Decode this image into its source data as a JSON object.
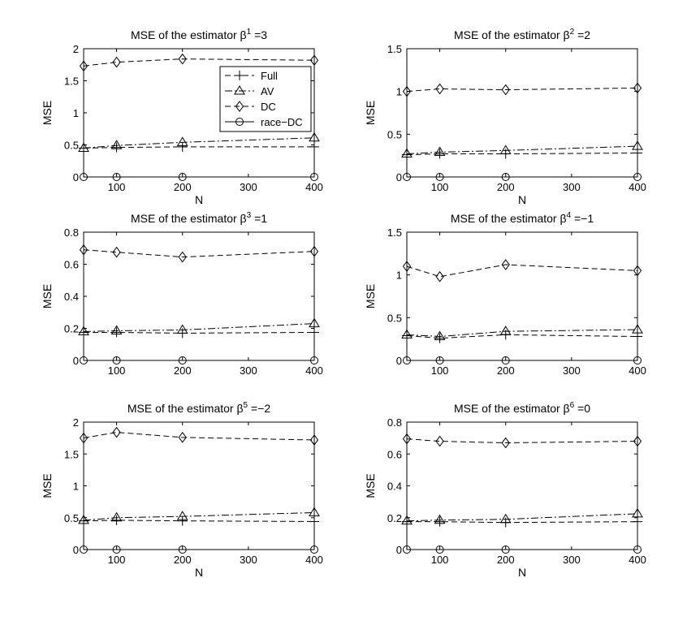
{
  "chart_data": [
    {
      "type": "line",
      "title": "MSE of the estimator β",
      "title_sup": "1",
      "title_suffix": " =3",
      "xlabel": "N",
      "ylabel": "MSE",
      "xlim": [
        50,
        400
      ],
      "ylim": [
        0,
        2
      ],
      "xticks": [
        100,
        200,
        300,
        400
      ],
      "yticks": [
        0,
        0.5,
        1,
        1.5,
        2
      ],
      "ytick_labels": [
        "0",
        "0.5",
        "1",
        "1.5",
        "2"
      ],
      "x": [
        50,
        100,
        200,
        400
      ],
      "series": [
        {
          "name": "Full",
          "values": [
            0.45,
            0.46,
            0.47,
            0.47
          ]
        },
        {
          "name": "AV",
          "values": [
            0.45,
            0.49,
            0.54,
            0.61
          ]
        },
        {
          "name": "DC",
          "values": [
            1.73,
            1.79,
            1.84,
            1.82
          ]
        },
        {
          "name": "race−DC",
          "values": [
            0,
            0,
            0,
            0
          ]
        }
      ],
      "legend": {
        "show": true,
        "position": "top-right"
      }
    },
    {
      "type": "line",
      "title": "MSE of the estimator β",
      "title_sup": "2",
      "title_suffix": " =2",
      "xlabel": "N",
      "ylabel": "MSE",
      "xlim": [
        50,
        400
      ],
      "ylim": [
        0,
        1.5
      ],
      "xticks": [
        100,
        200,
        300,
        400
      ],
      "yticks": [
        0,
        0.5,
        1,
        1.5
      ],
      "ytick_labels": [
        "0",
        "0.5",
        "1",
        "1.5"
      ],
      "x": [
        50,
        100,
        200,
        400
      ],
      "series": [
        {
          "name": "Full",
          "values": [
            0.26,
            0.27,
            0.27,
            0.28
          ]
        },
        {
          "name": "AV",
          "values": [
            0.27,
            0.29,
            0.31,
            0.36
          ]
        },
        {
          "name": "DC",
          "values": [
            1.0,
            1.03,
            1.02,
            1.04
          ]
        },
        {
          "name": "race−DC",
          "values": [
            0,
            0,
            0,
            0
          ]
        }
      ],
      "legend": {
        "show": false
      }
    },
    {
      "type": "line",
      "title": "MSE of the estimator β",
      "title_sup": "3",
      "title_suffix": " =1",
      "xlabel": "",
      "ylabel": "MSE",
      "xlim": [
        50,
        400
      ],
      "ylim": [
        0,
        0.8
      ],
      "xticks": [
        100,
        200,
        300,
        400
      ],
      "yticks": [
        0,
        0.2,
        0.4,
        0.6,
        0.8
      ],
      "ytick_labels": [
        "0",
        "0.2",
        "0.4",
        "0.6",
        "0.8"
      ],
      "x": [
        50,
        100,
        200,
        400
      ],
      "series": [
        {
          "name": "Full",
          "values": [
            0.175,
            0.175,
            0.17,
            0.175
          ]
        },
        {
          "name": "AV",
          "values": [
            0.18,
            0.185,
            0.19,
            0.23
          ]
        },
        {
          "name": "DC",
          "values": [
            0.69,
            0.675,
            0.645,
            0.68
          ]
        },
        {
          "name": "race−DC",
          "values": [
            0,
            0,
            0,
            0
          ]
        }
      ],
      "legend": {
        "show": false
      }
    },
    {
      "type": "line",
      "title": "MSE of the estimator β",
      "title_sup": "4",
      "title_suffix": " =−1",
      "xlabel": "",
      "ylabel": "MSE",
      "xlim": [
        50,
        400
      ],
      "ylim": [
        0,
        1.5
      ],
      "xticks": [
        100,
        200,
        300,
        400
      ],
      "yticks": [
        0,
        0.5,
        1,
        1.5
      ],
      "ytick_labels": [
        "0",
        "0.5",
        "1",
        "1.5"
      ],
      "x": [
        50,
        100,
        200,
        400
      ],
      "series": [
        {
          "name": "Full",
          "values": [
            0.29,
            0.26,
            0.3,
            0.28
          ]
        },
        {
          "name": "AV",
          "values": [
            0.3,
            0.28,
            0.34,
            0.36
          ]
        },
        {
          "name": "DC",
          "values": [
            1.1,
            0.98,
            1.12,
            1.05
          ]
        },
        {
          "name": "race−DC",
          "values": [
            0,
            0,
            0,
            0
          ]
        }
      ],
      "legend": {
        "show": false
      }
    },
    {
      "type": "line",
      "title": "MSE of the estimator β",
      "title_sup": "5",
      "title_suffix": " =−2",
      "xlabel": "N",
      "ylabel": "MSE",
      "xlim": [
        50,
        400
      ],
      "ylim": [
        0,
        2
      ],
      "xticks": [
        100,
        200,
        300,
        400
      ],
      "yticks": [
        0,
        0.5,
        1,
        1.5,
        2
      ],
      "ytick_labels": [
        "0",
        "0.5",
        "1",
        "1.5",
        "2"
      ],
      "x": [
        50,
        100,
        200,
        400
      ],
      "series": [
        {
          "name": "Full",
          "values": [
            0.45,
            0.46,
            0.45,
            0.44
          ]
        },
        {
          "name": "AV",
          "values": [
            0.46,
            0.5,
            0.52,
            0.58
          ]
        },
        {
          "name": "DC",
          "values": [
            1.75,
            1.84,
            1.76,
            1.72
          ]
        },
        {
          "name": "race−DC",
          "values": [
            0,
            0,
            0,
            0
          ]
        }
      ],
      "legend": {
        "show": false
      }
    },
    {
      "type": "line",
      "title": "MSE of the estimator β",
      "title_sup": "6",
      "title_suffix": " =0",
      "xlabel": "N",
      "ylabel": "MSE",
      "xlim": [
        50,
        400
      ],
      "ylim": [
        0,
        0.8
      ],
      "xticks": [
        100,
        200,
        300,
        400
      ],
      "yticks": [
        0,
        0.2,
        0.4,
        0.6,
        0.8
      ],
      "ytick_labels": [
        "0",
        "0.2",
        "0.4",
        "0.6",
        "0.8"
      ],
      "x": [
        50,
        100,
        200,
        400
      ],
      "series": [
        {
          "name": "Full",
          "values": [
            0.175,
            0.175,
            0.17,
            0.175
          ]
        },
        {
          "name": "AV",
          "values": [
            0.18,
            0.185,
            0.19,
            0.225
          ]
        },
        {
          "name": "DC",
          "values": [
            0.695,
            0.68,
            0.67,
            0.68
          ]
        },
        {
          "name": "race−DC",
          "values": [
            0,
            0,
            0,
            0
          ]
        }
      ],
      "legend": {
        "show": false
      }
    }
  ]
}
